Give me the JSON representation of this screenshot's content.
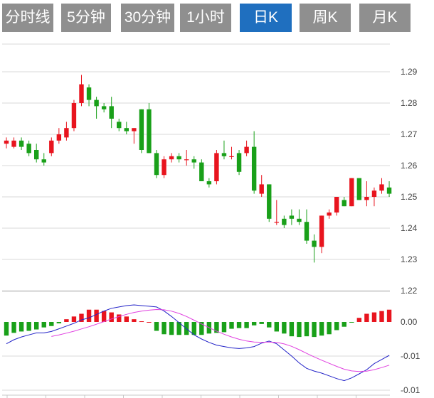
{
  "tabs": [
    {
      "label": "分时线",
      "active": false
    },
    {
      "label": "5分钟",
      "active": false
    },
    {
      "label": "30分钟",
      "active": false
    },
    {
      "label": "1小时",
      "active": false
    },
    {
      "label": "日K",
      "active": true
    },
    {
      "label": "周K",
      "active": false
    },
    {
      "label": "月K",
      "active": false
    }
  ],
  "colors": {
    "up": "#e8141e",
    "down": "#19a019",
    "tab_bg": "#8f8f8f",
    "tab_active": "#1f6fbf",
    "dif": "#2323c8",
    "dea": "#e040e0",
    "grid": "#d8d8d8"
  },
  "chart_data": [
    {
      "type": "candlestick",
      "title": "",
      "ylim": [
        1.22,
        1.295
      ],
      "yticks": [
        "1.29",
        "1.28",
        "1.27",
        "1.26",
        "1.25",
        "1.24",
        "1.23",
        "1.22"
      ],
      "ytick_values": [
        1.29,
        1.28,
        1.27,
        1.26,
        1.25,
        1.24,
        1.23,
        1.22
      ],
      "candles": [
        [
          1.267,
          1.268,
          1.2655,
          1.269
        ],
        [
          1.266,
          1.268,
          1.2655,
          1.269
        ],
        [
          1.268,
          1.266,
          1.265,
          1.269
        ],
        [
          1.267,
          1.264,
          1.263,
          1.268
        ],
        [
          1.265,
          1.262,
          1.261,
          1.267
        ],
        [
          1.262,
          1.261,
          1.26,
          1.264
        ],
        [
          1.264,
          1.268,
          1.263,
          1.269
        ],
        [
          1.268,
          1.27,
          1.267,
          1.272
        ],
        [
          1.269,
          1.272,
          1.268,
          1.274
        ],
        [
          1.272,
          1.28,
          1.271,
          1.281
        ],
        [
          1.28,
          1.286,
          1.279,
          1.289
        ],
        [
          1.285,
          1.281,
          1.279,
          1.286
        ],
        [
          1.281,
          1.279,
          1.275,
          1.282
        ],
        [
          1.279,
          1.278,
          1.277,
          1.28
        ],
        [
          1.279,
          1.275,
          1.272,
          1.282
        ],
        [
          1.274,
          1.272,
          1.271,
          1.275
        ],
        [
          1.272,
          1.271,
          1.27,
          1.274
        ],
        [
          1.271,
          1.272,
          1.267,
          1.272
        ],
        [
          1.278,
          1.265,
          1.264,
          1.278
        ],
        [
          1.278,
          1.264,
          1.264,
          1.28
        ],
        [
          1.264,
          1.257,
          1.256,
          1.265
        ],
        [
          1.257,
          1.262,
          1.256,
          1.263
        ],
        [
          1.262,
          1.263,
          1.261,
          1.264
        ],
        [
          1.263,
          1.262,
          1.261,
          1.264
        ],
        [
          1.262,
          1.262,
          1.26,
          1.265
        ],
        [
          1.262,
          1.261,
          1.259,
          1.263
        ],
        [
          1.261,
          1.255,
          1.255,
          1.262
        ],
        [
          1.255,
          1.254,
          1.253,
          1.256
        ],
        [
          1.255,
          1.264,
          1.254,
          1.265
        ],
        [
          1.264,
          1.263,
          1.262,
          1.268
        ],
        [
          1.263,
          1.263,
          1.262,
          1.266
        ],
        [
          1.264,
          1.258,
          1.257,
          1.265
        ],
        [
          1.264,
          1.266,
          1.263,
          1.268
        ],
        [
          1.266,
          1.252,
          1.251,
          1.271
        ],
        [
          1.251,
          1.254,
          1.25,
          1.257
        ],
        [
          1.254,
          1.243,
          1.242,
          1.254
        ],
        [
          1.242,
          1.242,
          1.241,
          1.249
        ],
        [
          1.243,
          1.241,
          1.24,
          1.244
        ],
        [
          1.244,
          1.243,
          1.241,
          1.246
        ],
        [
          1.243,
          1.242,
          1.241,
          1.246
        ],
        [
          1.242,
          1.236,
          1.235,
          1.246
        ],
        [
          1.236,
          1.234,
          1.229,
          1.238
        ],
        [
          1.234,
          1.244,
          1.232,
          1.244
        ],
        [
          1.244,
          1.245,
          1.243,
          1.246
        ],
        [
          1.245,
          1.25,
          1.244,
          1.25
        ],
        [
          1.249,
          1.247,
          1.247,
          1.25
        ],
        [
          1.247,
          1.256,
          1.247,
          1.256
        ],
        [
          1.256,
          1.249,
          1.249,
          1.256
        ],
        [
          1.249,
          1.25,
          1.247,
          1.255
        ],
        [
          1.25,
          1.252,
          1.247,
          1.253
        ],
        [
          1.252,
          1.254,
          1.251,
          1.256
        ],
        [
          1.253,
          1.251,
          1.25,
          1.255
        ]
      ]
    },
    {
      "type": "macd",
      "ylim": [
        -0.0115,
        0.0055
      ],
      "yticks": [
        "0.00",
        "-0.01",
        "-0.01"
      ],
      "ytick_values": [
        0.0,
        -0.005,
        -0.01
      ],
      "histogram": [
        -0.002,
        -0.0016,
        -0.0014,
        -0.0013,
        -0.0011,
        -0.0008,
        -0.0006,
        -0.0002,
        0.0004,
        0.0008,
        0.0012,
        0.0018,
        0.0018,
        0.0016,
        0.0014,
        0.0011,
        0.0008,
        0.0004,
        0.0001,
        0.0,
        -0.0013,
        -0.0018,
        -0.0019,
        -0.0019,
        -0.0019,
        -0.0019,
        -0.0019,
        -0.0017,
        -0.0016,
        -0.0015,
        -0.001,
        -0.0009,
        -0.0009,
        -0.0005,
        -0.0003,
        -0.0008,
        -0.0014,
        -0.0017,
        -0.0021,
        -0.0022,
        -0.0021,
        -0.0022,
        -0.002,
        -0.0018,
        -0.0012,
        -0.0007,
        -0.0001,
        0.0006,
        0.0012,
        0.0014,
        0.0016,
        0.0018
      ],
      "dif": [
        -0.0032,
        -0.0026,
        -0.0022,
        -0.0019,
        -0.0016,
        -0.0016,
        -0.0014,
        -0.001,
        -0.0006,
        -0.0002,
        0.0003,
        0.0006,
        0.0011,
        0.0016,
        0.002,
        0.0022,
        0.0024,
        0.0025,
        0.0024,
        0.0023,
        0.0022,
        0.0016,
        0.0008,
        -0.0001,
        -0.001,
        -0.0019,
        -0.0025,
        -0.003,
        -0.0034,
        -0.0036,
        -0.0038,
        -0.0039,
        -0.0038,
        -0.0036,
        -0.0031,
        -0.0028,
        -0.0032,
        -0.0041,
        -0.005,
        -0.006,
        -0.0068,
        -0.0072,
        -0.0075,
        -0.0079,
        -0.0083,
        -0.0086,
        -0.0082,
        -0.0076,
        -0.007,
        -0.0061,
        -0.0055,
        -0.0049
      ]
    }
  ]
}
